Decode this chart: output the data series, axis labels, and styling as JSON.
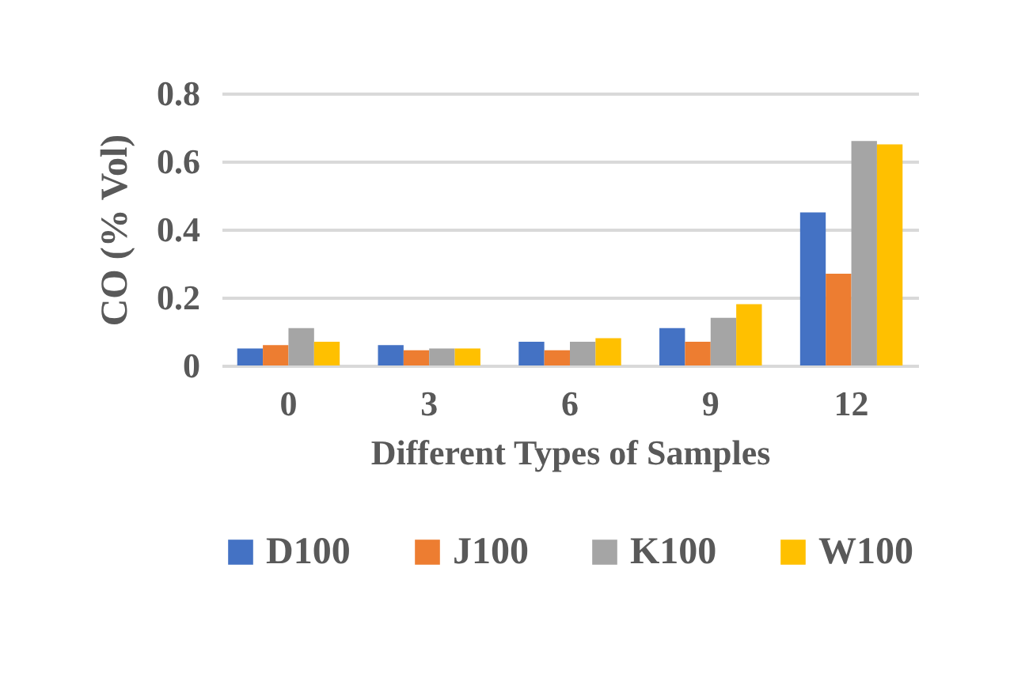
{
  "chart_data": {
    "type": "bar",
    "xlabel": "Different Types of Samples",
    "ylabel": "CO (% Vol)",
    "categories": [
      "0",
      "3",
      "6",
      "9",
      "12"
    ],
    "series": [
      {
        "name": "D100",
        "color": "#4472c4",
        "values": [
          0.05,
          0.06,
          0.07,
          0.11,
          0.45
        ]
      },
      {
        "name": "J100",
        "color": "#ed7d31",
        "values": [
          0.06,
          0.045,
          0.045,
          0.07,
          0.27
        ]
      },
      {
        "name": "K100",
        "color": "#a5a5a5",
        "values": [
          0.11,
          0.05,
          0.07,
          0.14,
          0.66
        ]
      },
      {
        "name": "W100",
        "color": "#ffc000",
        "values": [
          0.07,
          0.05,
          0.08,
          0.18,
          0.65
        ]
      }
    ],
    "ylim": [
      0,
      0.8
    ],
    "yticks": [
      0,
      0.2,
      0.4,
      0.6,
      0.8
    ],
    "grid": "y",
    "legend": "bottom"
  }
}
